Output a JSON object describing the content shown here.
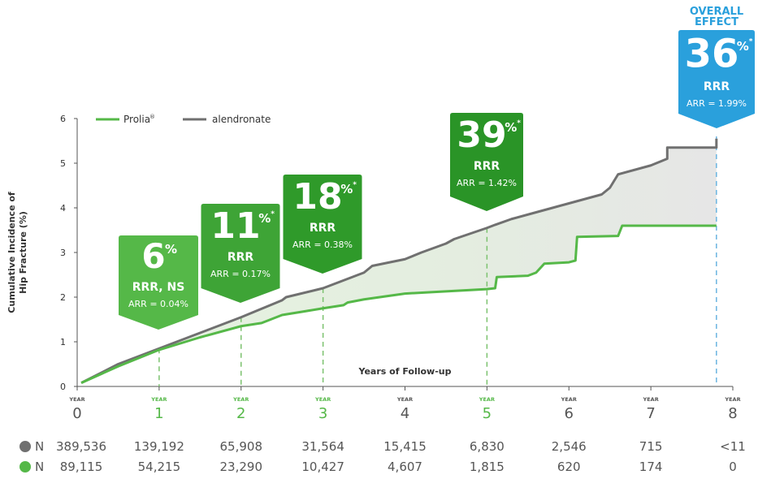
{
  "chart_data": {
    "type": "line",
    "ylabel": [
      "Cumulative Incidence of",
      "Hip Fracture (%)"
    ],
    "xlabel": "Years of Follow-up",
    "ylim": [
      0,
      6
    ],
    "xlim": [
      0,
      8
    ],
    "yticks": [
      "0",
      "1",
      "2",
      "3",
      "4",
      "5",
      "6"
    ],
    "xticks": [
      {
        "word": "YEAR",
        "num": "0",
        "highlight": false
      },
      {
        "word": "YEAR",
        "num": "1",
        "highlight": true
      },
      {
        "word": "YEAR",
        "num": "2",
        "highlight": true
      },
      {
        "word": "YEAR",
        "num": "3",
        "highlight": true
      },
      {
        "word": "YEAR",
        "num": "4",
        "highlight": false
      },
      {
        "word": "YEAR",
        "num": "5",
        "highlight": true
      },
      {
        "word": "YEAR",
        "num": "6",
        "highlight": false
      },
      {
        "word": "YEAR",
        "num": "7",
        "highlight": false
      },
      {
        "word": "YEAR",
        "num": "8",
        "highlight": false
      }
    ],
    "legend": {
      "placement": "top-left"
    },
    "series": [
      {
        "name": "Prolia",
        "name_mark": "®",
        "color": "#55b848",
        "points": [
          [
            0.05,
            0.08
          ],
          [
            0.5,
            0.45
          ],
          [
            1,
            0.82
          ],
          [
            1.5,
            1.1
          ],
          [
            2,
            1.35
          ],
          [
            2.25,
            1.42
          ],
          [
            2.5,
            1.6
          ],
          [
            3,
            1.75
          ],
          [
            3.25,
            1.82
          ],
          [
            3.3,
            1.88
          ],
          [
            3.5,
            1.95
          ],
          [
            4,
            2.08
          ],
          [
            4.5,
            2.13
          ],
          [
            5,
            2.18
          ],
          [
            5.1,
            2.2
          ],
          [
            5.12,
            2.45
          ],
          [
            5.5,
            2.48
          ],
          [
            5.6,
            2.55
          ],
          [
            5.7,
            2.75
          ],
          [
            6,
            2.78
          ],
          [
            6.08,
            2.82
          ],
          [
            6.1,
            3.35
          ],
          [
            6.6,
            3.37
          ],
          [
            6.65,
            3.6
          ],
          [
            7,
            3.6
          ],
          [
            7.8,
            3.6
          ]
        ]
      },
      {
        "name": "alendronate",
        "color": "#707070",
        "points": [
          [
            0.05,
            0.08
          ],
          [
            0.5,
            0.5
          ],
          [
            1,
            0.85
          ],
          [
            1.5,
            1.2
          ],
          [
            2,
            1.55
          ],
          [
            2.5,
            1.93
          ],
          [
            2.55,
            2.0
          ],
          [
            3,
            2.2
          ],
          [
            3.5,
            2.55
          ],
          [
            3.6,
            2.7
          ],
          [
            4,
            2.85
          ],
          [
            4.2,
            3.0
          ],
          [
            4.5,
            3.2
          ],
          [
            4.6,
            3.3
          ],
          [
            5,
            3.55
          ],
          [
            5.1,
            3.62
          ],
          [
            5.3,
            3.75
          ],
          [
            5.6,
            3.9
          ],
          [
            5.8,
            4.0
          ],
          [
            6,
            4.1
          ],
          [
            6.2,
            4.2
          ],
          [
            6.4,
            4.3
          ],
          [
            6.5,
            4.45
          ],
          [
            6.6,
            4.75
          ],
          [
            7,
            4.95
          ],
          [
            7.2,
            5.1
          ],
          [
            7.2,
            5.35
          ],
          [
            7.8,
            5.35
          ],
          [
            7.8,
            5.55
          ]
        ]
      }
    ],
    "dashed_markers": [
      {
        "x": 1,
        "color": "#7cc26f"
      },
      {
        "x": 2,
        "color": "#7cc26f"
      },
      {
        "x": 3,
        "color": "#7cc26f"
      },
      {
        "x": 5,
        "color": "#7cc26f"
      },
      {
        "x": 7.8,
        "color": "#6ab4e0"
      }
    ],
    "callouts": [
      {
        "x": 1,
        "pct": "6",
        "unit": "%",
        "star": "",
        "rrr": "RRR, NS",
        "arr": "ARR = 0.04%",
        "color": "#55b848"
      },
      {
        "x": 2,
        "pct": "11",
        "unit": "%",
        "star": "*",
        "rrr": "RRR",
        "arr": "ARR = 0.17%",
        "color": "#3ea436"
      },
      {
        "x": 3,
        "pct": "18",
        "unit": "%",
        "star": "*",
        "rrr": "RRR",
        "arr": "ARR = 0.38%",
        "color": "#2f9a2a"
      },
      {
        "x": 5,
        "pct": "39",
        "unit": "%",
        "star": "*",
        "rrr": "RRR",
        "arr": "ARR = 1.42%",
        "color": "#2a9427"
      },
      {
        "x": 7.8,
        "pct": "36",
        "unit": "%",
        "star": "*",
        "rrr": "RRR",
        "arr": "ARR = 1.99%",
        "color": "#2aa0dc",
        "header": [
          "OVERALL",
          "EFFECT"
        ]
      }
    ],
    "n_at_risk": [
      {
        "label": "N",
        "color": "#707070",
        "values": [
          "389,536",
          "139,192",
          "65,908",
          "31,564",
          "15,415",
          "6,830",
          "2,546",
          "715",
          "<11"
        ]
      },
      {
        "label": "N",
        "color": "#55b848",
        "values": [
          "89,115",
          "54,215",
          "23,290",
          "10,427",
          "4,607",
          "1,815",
          "620",
          "174",
          "0"
        ]
      }
    ]
  }
}
